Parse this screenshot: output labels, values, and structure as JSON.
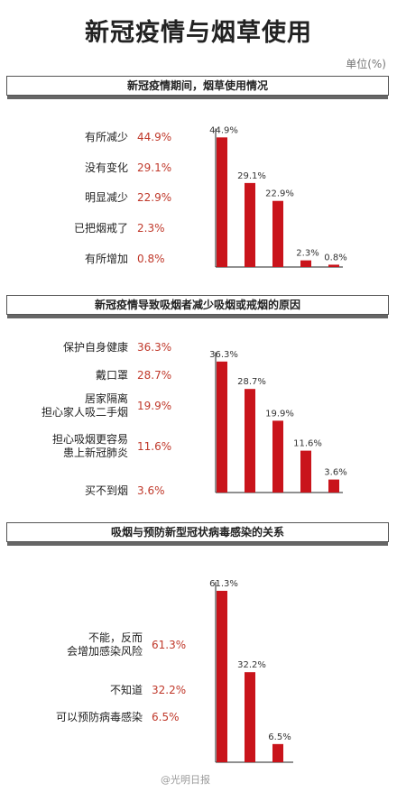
{
  "title": "新冠疫情与烟草使用",
  "unit": "单位(%)",
  "watermark": "@光明日报",
  "chart_data": [
    {
      "type": "bar",
      "title": "新冠疫情期间，烟草使用情况",
      "categories": [
        "有所减少",
        "没有变化",
        "明显减少",
        "已把烟戒了",
        "有所增加"
      ],
      "values": [
        44.9,
        29.1,
        22.9,
        2.3,
        0.8
      ],
      "value_labels": [
        "44.9%",
        "29.1%",
        "22.9%",
        "2.3%",
        "0.8%"
      ],
      "color": "#c9141b"
    },
    {
      "type": "bar",
      "title": "新冠疫情导致吸烟者减少吸烟或戒烟的原因",
      "categories": [
        "保护自身健康",
        "戴口罩",
        "居家隔离\n担心家人吸二手烟",
        "担心吸烟更容易\n患上新冠肺炎",
        "买不到烟"
      ],
      "values": [
        36.3,
        28.7,
        19.9,
        11.6,
        3.6
      ],
      "value_labels": [
        "36.3%",
        "28.7%",
        "19.9%",
        "11.6%",
        "3.6%"
      ],
      "color": "#c9141b"
    },
    {
      "type": "bar",
      "title": "吸烟与预防新型冠状病毒感染的关系",
      "categories": [
        "不能，反而\n会增加感染风险",
        "不知道",
        "可以预防病毒感染"
      ],
      "values": [
        61.3,
        32.2,
        6.5
      ],
      "value_labels": [
        "61.3%",
        "32.2%",
        "6.5%"
      ],
      "color": "#c9141b"
    }
  ]
}
